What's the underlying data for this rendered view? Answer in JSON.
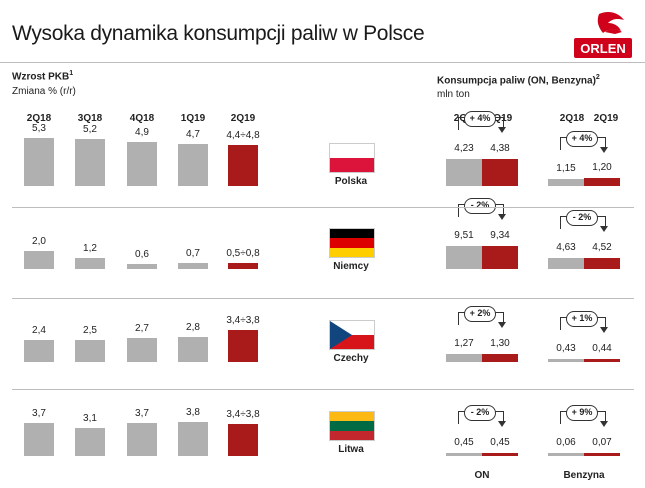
{
  "title": "Wysoka dynamika konsumpcji paliw w Polsce",
  "logo": {
    "text": "ORLEN",
    "icon": "orlen-eagle-icon",
    "color": "#d0021b"
  },
  "colors": {
    "grey": "#b0b0b0",
    "red": "#a91b1b",
    "divider": "#bdbdbd"
  },
  "left_header": {
    "title": "Wzrost PKB",
    "sup": "1",
    "subtitle": "Zmiana % (r/r)"
  },
  "right_header": {
    "title": "Konsumpcja paliw (ON, Benzyna)",
    "sup": "2",
    "subtitle": "mln ton"
  },
  "right_labels": {
    "period_a": "2Q18",
    "period_b": "2Q19",
    "on_label": "ON",
    "benzyna_label": "Benzyna"
  },
  "chart_data": [
    {
      "type": "bar",
      "title": "Wzrost PKB",
      "ylabel": "Zmiana % (r/r)",
      "categories": [
        "2Q18",
        "3Q18",
        "4Q18",
        "1Q19",
        "2Q19"
      ],
      "series": [
        {
          "name": "Polska",
          "values": [
            5.3,
            5.2,
            4.9,
            4.7,
            4.6
          ],
          "labels": [
            "5,3",
            "5,2",
            "4,9",
            "4,7",
            "4,4÷4,8"
          ]
        },
        {
          "name": "Niemcy",
          "values": [
            2.0,
            1.2,
            0.6,
            0.7,
            0.65
          ],
          "labels": [
            "2,0",
            "1,2",
            "0,6",
            "0,7",
            "0,5÷0,8"
          ]
        },
        {
          "name": "Czechy",
          "values": [
            2.4,
            2.5,
            2.7,
            2.8,
            3.6
          ],
          "labels": [
            "2,4",
            "2,5",
            "2,7",
            "2,8",
            "3,4÷3,8"
          ]
        },
        {
          "name": "Litwa",
          "values": [
            3.7,
            3.1,
            3.7,
            3.8,
            3.6
          ],
          "labels": [
            "3,7",
            "3,1",
            "3,7",
            "3,8",
            "3,4÷3,8"
          ]
        }
      ]
    },
    {
      "type": "bar",
      "title": "Konsumpcja paliw (ON, Benzyna)",
      "ylabel": "mln ton",
      "categories": [
        "2Q18",
        "2Q19"
      ],
      "groups": [
        "ON",
        "Benzyna"
      ],
      "rows": [
        {
          "country": "Polska",
          "on": [
            4.23,
            4.38
          ],
          "on_labels": [
            "4,23",
            "4,38"
          ],
          "on_change": "+ 4%",
          "benzyna": [
            1.15,
            1.2
          ],
          "benzyna_labels": [
            "1,15",
            "1,20"
          ],
          "benzyna_change": "+ 4%"
        },
        {
          "country": "Niemcy",
          "on": [
            9.51,
            9.34
          ],
          "on_labels": [
            "9,51",
            "9,34"
          ],
          "on_change": "- 2%",
          "benzyna": [
            4.63,
            4.52
          ],
          "benzyna_labels": [
            "4,63",
            "4,52"
          ],
          "benzyna_change": "- 2%"
        },
        {
          "country": "Czechy",
          "on": [
            1.27,
            1.3
          ],
          "on_labels": [
            "1,27",
            "1,30"
          ],
          "on_change": "+ 2%",
          "benzyna": [
            0.43,
            0.44
          ],
          "benzyna_labels": [
            "0,43",
            "0,44"
          ],
          "benzyna_change": "+ 1%"
        },
        {
          "country": "Litwa",
          "on": [
            0.45,
            0.45
          ],
          "on_labels": [
            "0,45",
            "0,45"
          ],
          "on_change": "- 2%",
          "benzyna": [
            0.06,
            0.07
          ],
          "benzyna_labels": [
            "0,06",
            "0,07"
          ],
          "benzyna_change": "+ 9%"
        }
      ]
    }
  ],
  "flags": [
    {
      "country": "Polska",
      "stripes": [
        "#ffffff",
        "#dc143c"
      ]
    },
    {
      "country": "Niemcy",
      "stripes": [
        "#000000",
        "#dd0000",
        "#ffce00"
      ]
    },
    {
      "country": "Czechy",
      "stripes": [
        "#ffffff",
        "#d7141a"
      ],
      "triangle": "#11457e"
    },
    {
      "country": "Litwa",
      "stripes": [
        "#fdb913",
        "#006a44",
        "#c1272d"
      ]
    }
  ]
}
